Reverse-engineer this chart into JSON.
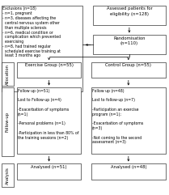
{
  "assessed_text": "Assessed patients for\neligibility (n=128)",
  "randomisation_text": "Randomisation\n(n=110)",
  "exclusions_title": "Exclusions (n=18)",
  "exclusions_lines": [
    "- n=1, pregnant",
    "- n=3, diseases affecting the",
    "  central nervous system other",
    "  than multiple sclerosis",
    "- n=6, medical condition or",
    "  complication which prevented",
    "  exercising",
    "- n=8, had trained regular",
    "  scheduled exercise training at",
    "  least 3 months ago"
  ],
  "exercise_group_text": "Exercise Group (n=55)",
  "control_group_text": "Control Group (n=55)",
  "followup_exercise_lines": [
    "Follow up (n=51)",
    "",
    "Lost to Follow-up (n=4)",
    "",
    "-Exacerbation of symptoms",
    "(n=1)",
    "",
    "-Personal problems (n=1)",
    "",
    "-Participation in less than 80% of",
    "the training sessions (n=2)"
  ],
  "followup_control_lines": [
    "Follow up (n=48)",
    "",
    "Lost to follow-up (n=7)",
    "",
    "-Participation an exercise",
    "program (n=1);",
    "",
    "-Exacerbation of symptoms",
    "(n=3)",
    "",
    "-Not coming to the second",
    "assessment (n=3)"
  ],
  "analysed_exercise_text": "Analysed (n=51)",
  "analysed_control_text": "Analysed (n=48)",
  "allocation_label": "Allocation",
  "followup_label": "Follow-up",
  "analysis_label": "Analysis",
  "box_color": "white",
  "box_edge_color": "black",
  "bg_color": "white",
  "text_color": "black"
}
